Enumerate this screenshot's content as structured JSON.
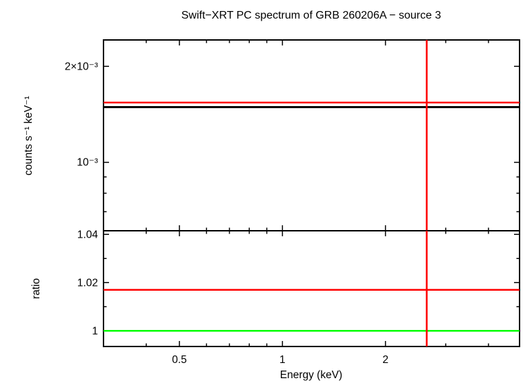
{
  "chart_data": {
    "type": "line",
    "title": "Swift−XRT PC spectrum of GRB 260206A − source 3",
    "xlabel": "Energy (keV)",
    "xscale": "log",
    "xlim": [
      0.3,
      4.93
    ],
    "x_major_ticks": [
      0.5,
      1,
      2
    ],
    "x_minor_ticks": [
      0.4,
      0.6,
      0.7,
      0.8,
      0.9,
      3,
      4
    ],
    "x_tick_labels": [
      "0.5",
      "1",
      "2"
    ],
    "grid": false,
    "legend": "none",
    "panels": [
      {
        "ylabel": "counts s⁻¹ keV⁻¹",
        "yscale": "log",
        "ylim": [
          0.00061,
          0.00242
        ],
        "y_major_ticks": [
          0.001,
          0.002
        ],
        "y_tick_labels": [
          "10⁻³",
          "2×10⁻³"
        ],
        "y_minor_ticks": [
          0.0007,
          0.0008,
          0.0009
        ],
        "series": [
          {
            "name": "model-line-black",
            "type": "hline",
            "y": 0.00149,
            "color": "#000000",
            "lw": 3
          },
          {
            "name": "data-line-red",
            "type": "hline",
            "y": 0.00154,
            "color": "#ff0000",
            "lw": 2.5
          },
          {
            "name": "energy-marker-vline-red",
            "type": "vline",
            "x": 2.64,
            "color": "#ff0000",
            "lw": 2.5
          }
        ]
      },
      {
        "ylabel": "ratio",
        "yscale": "linear",
        "ylim": [
          0.9935,
          1.0415
        ],
        "y_major_ticks": [
          1,
          1.02,
          1.04
        ],
        "y_tick_labels": [
          "1",
          "1.02",
          "1.04"
        ],
        "y_minor_ticks": [
          1.01,
          1.03
        ],
        "series": [
          {
            "name": "ratio-line-red",
            "type": "hline",
            "y": 1.017,
            "color": "#ff0000",
            "lw": 2.5
          },
          {
            "name": "unity-line-green",
            "type": "hline",
            "y": 1.0,
            "color": "#00ff00",
            "lw": 2.5
          },
          {
            "name": "energy-marker-vline-red",
            "type": "vline",
            "x": 2.64,
            "color": "#ff0000",
            "lw": 2.5
          }
        ]
      }
    ],
    "frame_color": "#000000",
    "background_color": "#ffffff"
  }
}
